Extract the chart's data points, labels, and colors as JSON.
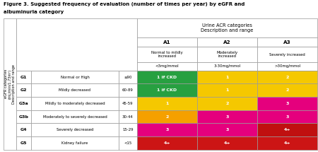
{
  "title_line1": "Figure 3. Suggested frequency of evaluation (number of times per year) by eGFR and",
  "title_line2": "albuminuria category",
  "col_header_top": "Urine ACR categories\nDescription and range",
  "col_headers": [
    "A1",
    "A2",
    "A3"
  ],
  "col_subheaders": [
    "Normal to mildly\nincreased",
    "Moderately\nincreased",
    "Severely increased"
  ],
  "col_ranges": [
    "<3mg/mmol",
    "3-30mg/mmol",
    ">30mg/mmol"
  ],
  "row_labels": [
    "G1",
    "G2",
    "G3a",
    "G3b",
    "G4",
    "G5"
  ],
  "row_descriptions": [
    "Normal or High",
    "Mildly decreased",
    "Mildly to moderately decreased",
    "Moderately to severely decreased",
    "Severely decreased",
    "Kidney failure"
  ],
  "row_ranges": [
    "≥90",
    "60-89",
    "45-59",
    "30-44",
    "15-29",
    "<15"
  ],
  "cell_values": [
    [
      "1 if CKD",
      "1",
      "2"
    ],
    [
      "1 if CKD",
      "1",
      "2"
    ],
    [
      "1",
      "2",
      "3"
    ],
    [
      "2",
      "3",
      "3"
    ],
    [
      "3",
      "3",
      "4+"
    ],
    [
      "4+",
      "4+",
      "4+"
    ]
  ],
  "cell_colors": [
    [
      "#27a040",
      "#f5c800",
      "#f5c800"
    ],
    [
      "#27a040",
      "#f5c800",
      "#f5c800"
    ],
    [
      "#f5c800",
      "#f5c800",
      "#e5007d"
    ],
    [
      "#f5a000",
      "#e5007d",
      "#e5007d"
    ],
    [
      "#e5007d",
      "#e5007d",
      "#c01010"
    ],
    [
      "#cc1515",
      "#cc1515",
      "#cc1515"
    ]
  ],
  "left_axis_label": "eGFR categories\n(mL/min/1.73m²)\nDescription and range",
  "border_color": "#999999"
}
